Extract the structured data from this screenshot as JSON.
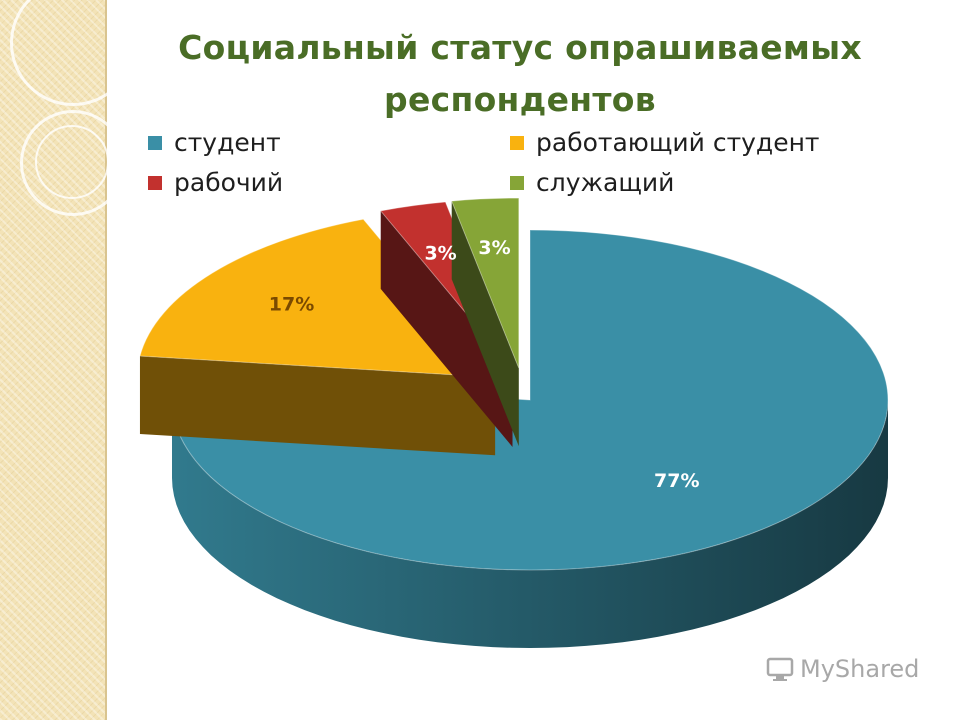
{
  "title": "Социальный статус опрашиваемых респондентов",
  "watermark": "MyShared",
  "chart_data": {
    "type": "pie",
    "title": "Социальный статус опрашиваемых респондентов",
    "legend_position": "top",
    "slices": [
      {
        "label": "студент",
        "value": 77,
        "value_label": "77%",
        "color": "#3a8fa6"
      },
      {
        "label": "работающий студент",
        "value": 17,
        "value_label": "17%",
        "color": "#f9b20f"
      },
      {
        "label": "рабочий",
        "value": 3,
        "value_label": "3%",
        "color": "#c2312e"
      },
      {
        "label": "служащий",
        "value": 3,
        "value_label": "3%",
        "color": "#86a537"
      }
    ]
  }
}
